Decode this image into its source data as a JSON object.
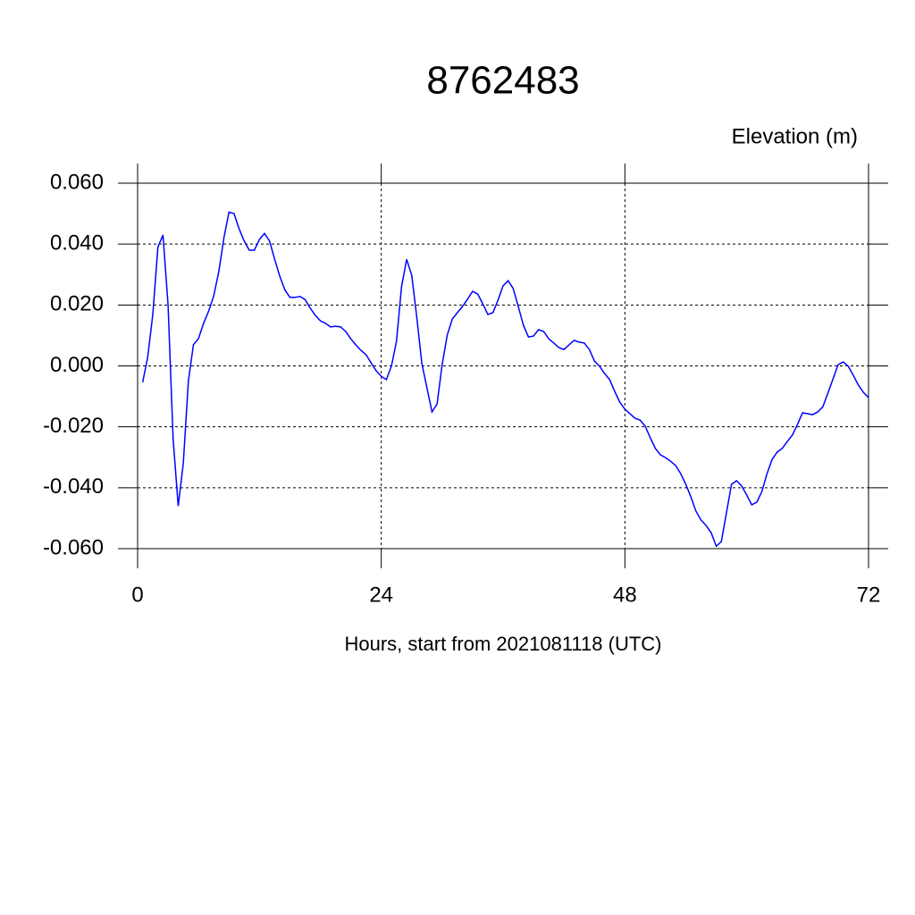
{
  "chart_data": {
    "type": "line",
    "title": "8762483",
    "y_label": "Elevation (m)",
    "x_label": "Hours, start from 2021081118 (UTC)",
    "x": [
      0.5,
      1,
      1.5,
      2,
      2.5,
      3,
      3.5,
      4,
      4.5,
      5,
      5.5,
      6,
      6.5,
      7,
      7.5,
      8,
      8.5,
      9,
      9.5,
      10,
      10.5,
      11,
      11.5,
      12,
      12.5,
      13,
      13.5,
      14,
      14.5,
      15,
      15.5,
      16,
      16.5,
      17,
      17.5,
      18,
      18.5,
      19,
      19.5,
      20,
      20.5,
      21,
      21.5,
      22,
      22.5,
      23,
      23.5,
      24,
      24.5,
      25,
      25.5,
      26,
      26.5,
      27,
      27.5,
      28,
      28.5,
      29,
      29.5,
      30,
      30.5,
      31,
      31.5,
      32,
      32.5,
      33,
      33.5,
      34,
      34.5,
      35,
      35.5,
      36,
      36.5,
      37,
      37.5,
      38,
      38.5,
      39,
      39.5,
      40,
      40.5,
      41,
      41.5,
      42,
      42.5,
      43,
      43.5,
      44,
      44.5,
      45,
      45.5,
      46,
      46.5,
      47,
      47.5,
      48,
      48.5,
      49,
      49.5,
      50,
      50.5,
      51,
      51.5,
      52,
      52.5,
      53,
      53.5,
      54,
      54.5,
      55,
      55.5,
      56,
      56.5,
      57,
      57.5,
      58,
      58.5,
      59,
      59.5,
      60,
      60.5,
      61,
      61.5,
      62,
      62.5,
      63,
      63.5,
      64,
      64.5,
      65,
      65.5,
      66,
      66.5,
      67,
      67.5,
      68,
      68.5,
      69,
      69.5,
      70,
      70.5,
      71,
      71.5,
      72
    ],
    "series": [
      {
        "color": "#0000ff",
        "values": [
          -0.0054,
          0.003,
          0.017,
          0.039,
          0.043,
          0.02,
          -0.024,
          -0.046,
          -0.032,
          -0.005,
          0.007,
          0.009,
          0.014,
          0.018,
          0.023,
          0.031,
          0.042,
          0.0505,
          0.05,
          0.045,
          0.041,
          0.038,
          0.038,
          0.0415,
          0.0435,
          0.041,
          0.035,
          0.0295,
          0.025,
          0.0225,
          0.0225,
          0.0228,
          0.0218,
          0.019,
          0.0166,
          0.0148,
          0.014,
          0.0128,
          0.013,
          0.0128,
          0.0113,
          0.0089,
          0.0069,
          0.0051,
          0.0037,
          0.001,
          -0.0016,
          -0.0034,
          -0.0045,
          -0.0001,
          0.0081,
          0.026,
          0.035,
          0.0298,
          0.016,
          0.0008,
          -0.0072,
          -0.0151,
          -0.0125,
          0.0004,
          0.0101,
          0.0154,
          0.0175,
          0.0195,
          0.0219,
          0.0245,
          0.0236,
          0.0204,
          0.0169,
          0.0175,
          0.0216,
          0.0263,
          0.028,
          0.0254,
          0.0195,
          0.0134,
          0.0095,
          0.0098,
          0.0119,
          0.0113,
          0.0089,
          0.0075,
          0.006,
          0.0054,
          0.0069,
          0.0084,
          0.0078,
          0.0075,
          0.0054,
          0.0016,
          -0.0001,
          -0.0025,
          -0.0045,
          -0.0084,
          -0.0119,
          -0.0142,
          -0.0157,
          -0.0172,
          -0.0178,
          -0.0198,
          -0.0236,
          -0.0271,
          -0.0292,
          -0.0301,
          -0.0313,
          -0.0327,
          -0.0354,
          -0.0389,
          -0.043,
          -0.0477,
          -0.0506,
          -0.0524,
          -0.0548,
          -0.0592,
          -0.0577,
          -0.0483,
          -0.0389,
          -0.0377,
          -0.0394,
          -0.0424,
          -0.0456,
          -0.0447,
          -0.0412,
          -0.0354,
          -0.0307,
          -0.0283,
          -0.0271,
          -0.0248,
          -0.0227,
          -0.0192,
          -0.0154,
          -0.0157,
          -0.016,
          -0.0151,
          -0.0134,
          -0.0089,
          -0.0043,
          0.0004,
          0.0013,
          -0.0001,
          -0.0031,
          -0.0063,
          -0.0087,
          -0.0104
        ]
      }
    ],
    "xlim": [
      0,
      72
    ],
    "xticks": [
      0,
      24,
      48,
      72
    ],
    "ylim": [
      -0.06,
      0.06
    ],
    "yticks": [
      {
        "value": -0.06,
        "label": "-0.060"
      },
      {
        "value": -0.04,
        "label": "-0.040"
      },
      {
        "value": -0.02,
        "label": "-0.020"
      },
      {
        "value": 0,
        "label": "0.000"
      },
      {
        "value": 0.02,
        "label": "0.020"
      },
      {
        "value": 0.04,
        "label": "0.040"
      },
      {
        "value": 0.06,
        "label": "0.060"
      }
    ],
    "grid": true
  }
}
